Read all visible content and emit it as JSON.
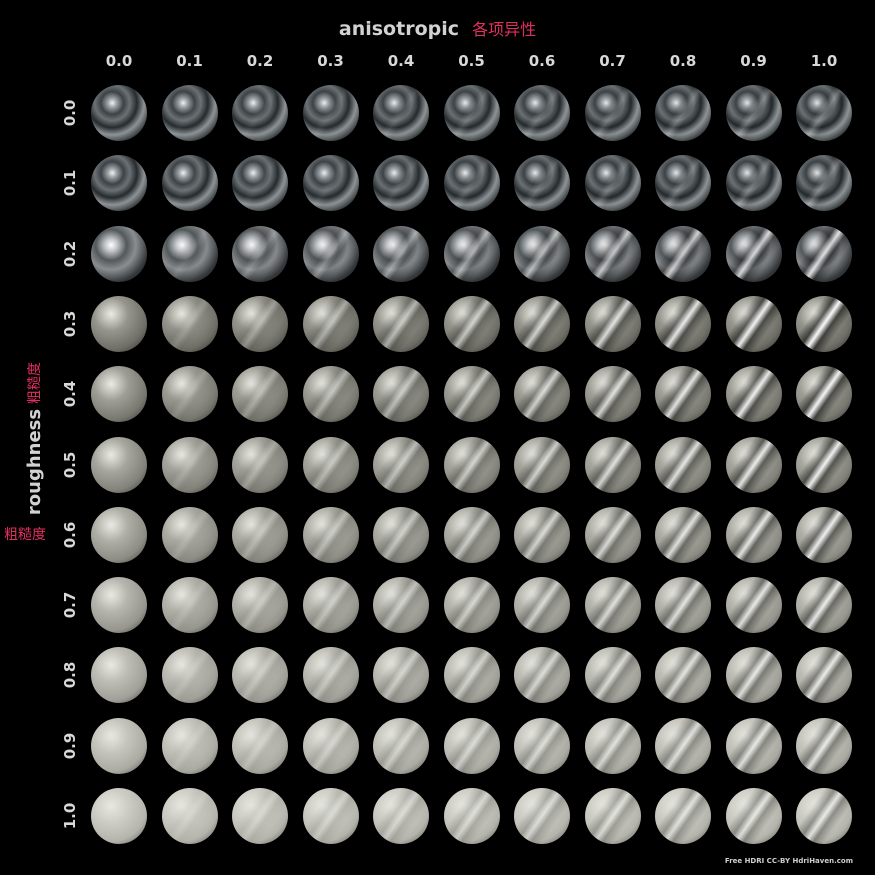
{
  "title": {
    "en": "anisotropic",
    "zh": "各项异性"
  },
  "y_axis": {
    "en": "roughness",
    "zh": "粗糙度"
  },
  "columns": [
    "0.0",
    "0.1",
    "0.2",
    "0.3",
    "0.4",
    "0.5",
    "0.6",
    "0.7",
    "0.8",
    "0.9",
    "1.0"
  ],
  "rows": [
    "0.0",
    "0.1",
    "0.2",
    "0.3",
    "0.4",
    "0.5",
    "0.6",
    "0.7",
    "0.8",
    "0.9",
    "1.0"
  ],
  "credit": "Free HDRI CC-BY HdriHaven.com",
  "colors": {
    "background": "#000000",
    "label": "#d8d8d8",
    "accent": "#e0305f"
  }
}
